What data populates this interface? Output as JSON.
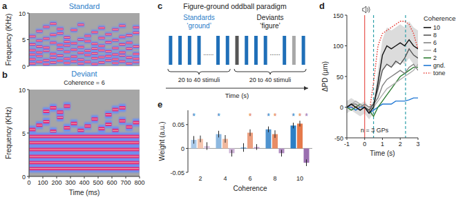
{
  "chart_data": [
    {
      "type": "spectrogram",
      "panel": "a",
      "title": "Standard",
      "color": "#2a7dc8",
      "ylabel": "Frequency (KHz)",
      "xlim": [
        0,
        800
      ],
      "ylim": [
        0,
        10
      ],
      "yticks": [
        0,
        5,
        10
      ],
      "tick_labels": "y",
      "chord_duration": 50,
      "chords": [
        {
          "t": 0,
          "freqs": [
            0.5,
            1.3,
            2.2,
            3.0,
            4.1,
            5.6
          ]
        },
        {
          "t": 50,
          "freqs": [
            0.8,
            1.9,
            2.6,
            3.7,
            4.8,
            6.6
          ]
        },
        {
          "t": 100,
          "freqs": [
            0.4,
            1.1,
            2.9,
            3.5,
            5.2,
            7.4
          ]
        },
        {
          "t": 150,
          "freqs": [
            0.7,
            1.6,
            2.3,
            4.4,
            5.9,
            8.0
          ]
        },
        {
          "t": 200,
          "freqs": [
            1.0,
            2.0,
            3.2,
            4.0,
            6.2,
            7.0
          ]
        },
        {
          "t": 250,
          "freqs": [
            0.6,
            1.4,
            2.7,
            3.9,
            4.6,
            5.4
          ]
        },
        {
          "t": 300,
          "freqs": [
            0.9,
            1.8,
            3.1,
            4.3,
            6.8
          ]
        },
        {
          "t": 350,
          "freqs": [
            0.5,
            1.2,
            2.5,
            3.6,
            5.0,
            7.8
          ]
        },
        {
          "t": 400,
          "freqs": [
            0.8,
            2.1,
            2.9,
            4.7,
            5.7
          ]
        },
        {
          "t": 450,
          "freqs": [
            0.4,
            1.5,
            2.4,
            3.3,
            4.2,
            6.4
          ]
        },
        {
          "t": 500,
          "freqs": [
            0.7,
            1.7,
            3.0,
            3.8,
            5.3,
            7.2
          ]
        },
        {
          "t": 550,
          "freqs": [
            1.1,
            1.9,
            2.8,
            4.5,
            6.0
          ]
        },
        {
          "t": 600,
          "freqs": [
            0.6,
            1.3,
            2.2,
            3.4,
            4.9,
            6.9
          ]
        },
        {
          "t": 650,
          "freqs": [
            0.9,
            2.0,
            2.6,
            4.1,
            5.5,
            7.6
          ]
        },
        {
          "t": 700,
          "freqs": [
            0.5,
            1.6,
            3.3,
            4.4,
            5.8
          ]
        },
        {
          "t": 750,
          "freqs": [
            0.8,
            1.4,
            2.3,
            3.7,
            6.3,
            7.3
          ]
        }
      ]
    },
    {
      "type": "spectrogram",
      "panel": "b",
      "title": "Deviant",
      "subtitle": "Coherence = 6",
      "color": "#2a7dc8",
      "xlabel": "Time (ms)",
      "ylabel": "Frequency (KHz)",
      "xlim": [
        0,
        800
      ],
      "ylim": [
        0,
        10
      ],
      "xticks": [
        0,
        100,
        200,
        300,
        400,
        500,
        600,
        700,
        800
      ],
      "yticks": [
        0,
        5,
        10
      ],
      "chord_duration": 50,
      "figure_freqs": [
        0.9,
        1.6,
        2.3,
        3.1,
        3.9,
        4.6
      ],
      "chords": [
        {
          "t": 0,
          "freqs": [
            5.4
          ]
        },
        {
          "t": 50,
          "freqs": [
            5.9
          ]
        },
        {
          "t": 100,
          "freqs": [
            6.3,
            7.5
          ]
        },
        {
          "t": 150,
          "freqs": [
            5.2,
            7.9
          ]
        },
        {
          "t": 200,
          "freqs": [
            6.8,
            7.4
          ]
        },
        {
          "t": 250,
          "freqs": [
            5.6,
            8.1
          ]
        },
        {
          "t": 300,
          "freqs": [
            6.1
          ]
        },
        {
          "t": 350,
          "freqs": [
            5.3
          ]
        },
        {
          "t": 400,
          "freqs": [
            5.8
          ]
        },
        {
          "t": 450,
          "freqs": [
            6.6
          ]
        },
        {
          "t": 500,
          "freqs": [
            5.5
          ]
        },
        {
          "t": 550,
          "freqs": [
            6.0,
            7.1
          ]
        },
        {
          "t": 600,
          "freqs": [
            5.3,
            7.7
          ]
        },
        {
          "t": 650,
          "freqs": [
            6.4,
            7.9
          ]
        },
        {
          "t": 700,
          "freqs": [
            5.7
          ]
        },
        {
          "t": 750,
          "freqs": [
            6.2
          ]
        }
      ]
    },
    {
      "type": "diagram",
      "panel": "c",
      "title": "Figure-ground oddball paradigm",
      "dots_label": "......",
      "xlabel": "Time (s)",
      "groups": [
        {
          "label": "Standards",
          "sublabel": "‘ground’",
          "color": "#2a7dc8",
          "span_label": "20 to 40 stimuli",
          "stimuli": [
            "#1f6fb8",
            "#1f6fb8",
            "#1f6fb8",
            "#1f6fb8",
            null,
            "#1f6fb8",
            "#1f6fb8"
          ]
        },
        {
          "label": "Deviants",
          "sublabel": "‘figure’",
          "color": "#222222",
          "span_label": "20 to 40 stimuli",
          "stimuli": [
            "#555555",
            "#1f6fb8",
            "#1f6fb8",
            "#1f6fb8",
            null,
            "#1f6fb8",
            "#a8a8a8",
            "#1f6fb8"
          ]
        }
      ]
    },
    {
      "type": "line",
      "panel": "d",
      "xlabel": "Time (s)",
      "ylabel": "ΔPD (µm)",
      "xlim": [
        -1,
        3
      ],
      "ylim": [
        -50,
        150
      ],
      "xticks": [
        -1,
        0,
        1,
        2,
        3
      ],
      "yticks": [
        -50,
        0,
        50,
        100,
        150
      ],
      "legend": "right",
      "legend_title": "Coherence",
      "annotation": "n = 3 GPs",
      "events": [
        {
          "x": 0,
          "color": "#e8504a",
          "line_style": "solid"
        },
        {
          "x": 0.5,
          "color": "#2a9fa8",
          "line_style": "dashed"
        },
        {
          "x": 2.3,
          "color": "#2a9fa8",
          "line_style": "dashed"
        }
      ],
      "x": [
        -1,
        -0.75,
        -0.5,
        -0.25,
        0,
        0.25,
        0.5,
        0.75,
        1,
        1.25,
        1.5,
        1.75,
        2,
        2.25,
        2.5,
        2.75,
        3
      ],
      "series": [
        {
          "name": "10",
          "color": "#111111",
          "line_style": "solid",
          "values": [
            0,
            5,
            0,
            -5,
            0,
            -10,
            0,
            40,
            85,
            100,
            95,
            100,
            105,
            100,
            110,
            100,
            95
          ],
          "errors": [
            10,
            10,
            10,
            10,
            10,
            10,
            10,
            20,
            25,
            30,
            30,
            30,
            30,
            30,
            30,
            30,
            30
          ]
        },
        {
          "name": "8",
          "color": "#555555",
          "line_style": "solid",
          "values": [
            0,
            5,
            0,
            -5,
            0,
            -5,
            5,
            30,
            60,
            70,
            65,
            75,
            70,
            80,
            95,
            85,
            80
          ]
        },
        {
          "name": "6",
          "color": "#808080",
          "line_style": "solid",
          "values": [
            0,
            5,
            5,
            0,
            5,
            0,
            5,
            15,
            35,
            45,
            50,
            55,
            60,
            55,
            65,
            70,
            60
          ]
        },
        {
          "name": "4",
          "color": "#b0b0b0",
          "line_style": "solid",
          "values": [
            0,
            5,
            10,
            5,
            0,
            -5,
            0,
            10,
            20,
            30,
            35,
            40,
            45,
            50,
            55,
            60,
            70
          ]
        },
        {
          "name": "2",
          "color": "#2e7d32",
          "line_style": "solid",
          "values": [
            0,
            -5,
            0,
            5,
            0,
            -5,
            -15,
            0,
            10,
            20,
            30,
            40,
            50,
            55,
            60,
            65,
            65
          ]
        },
        {
          "name": "gnd.",
          "color": "#1f77d4",
          "line_style": "solid",
          "values": [
            0,
            0,
            -5,
            0,
            0,
            -10,
            -5,
            0,
            5,
            5,
            5,
            10,
            10,
            10,
            12,
            15,
            15
          ]
        },
        {
          "name": "tone",
          "color": "#e8403a",
          "line_style": "dotted",
          "values": [
            0,
            0,
            0,
            0,
            0,
            -10,
            40,
            100,
            120,
            125,
            130,
            135,
            140,
            140,
            135,
            120,
            95
          ]
        }
      ]
    },
    {
      "type": "bar",
      "panel": "e",
      "xlabel": "Coherence",
      "ylabel": "Weight (a.u.)",
      "categories": [
        "2",
        "4",
        "6",
        "8",
        "10"
      ],
      "ylim": [
        -0.05,
        0.08
      ],
      "yticks": [
        -0.05,
        0,
        0.05
      ],
      "significance_label": "*",
      "series": [
        {
          "color": "#2b7fc6",
          "colors": [
            "#a9c8e8",
            "#8db8e0",
            "#6aa3d6",
            "#4f93cf",
            "#2b7fc6"
          ],
          "values": [
            0.018,
            0.03,
            0.002,
            0.04,
            0.048
          ],
          "errors": [
            0.008,
            0.007,
            0.009,
            0.006,
            0.006
          ],
          "significant": [
            true,
            true,
            false,
            true,
            true
          ]
        },
        {
          "color": "#e57a4b",
          "colors": [
            "#f5c6b0",
            "#f0b89e",
            "#ec9f7f",
            "#e88c66",
            "#e57a4b"
          ],
          "values": [
            0.02,
            0.02,
            0.033,
            0.03,
            0.052
          ],
          "errors": [
            0.007,
            0.008,
            0.007,
            0.008,
            0.006
          ],
          "significant": [
            false,
            false,
            true,
            true,
            true
          ]
        },
        {
          "color": "#9a6fb0",
          "colors": [
            "#d9c5e0",
            "#cdb3d6",
            "#c0a0cc",
            "#b08cc0",
            "#9a6fb0"
          ],
          "values": [
            0.005,
            -0.01,
            0.003,
            -0.01,
            -0.03
          ],
          "errors": [
            0.008,
            0.007,
            0.006,
            0.007,
            0.007
          ],
          "significant": [
            false,
            false,
            false,
            false,
            true
          ]
        }
      ]
    }
  ]
}
